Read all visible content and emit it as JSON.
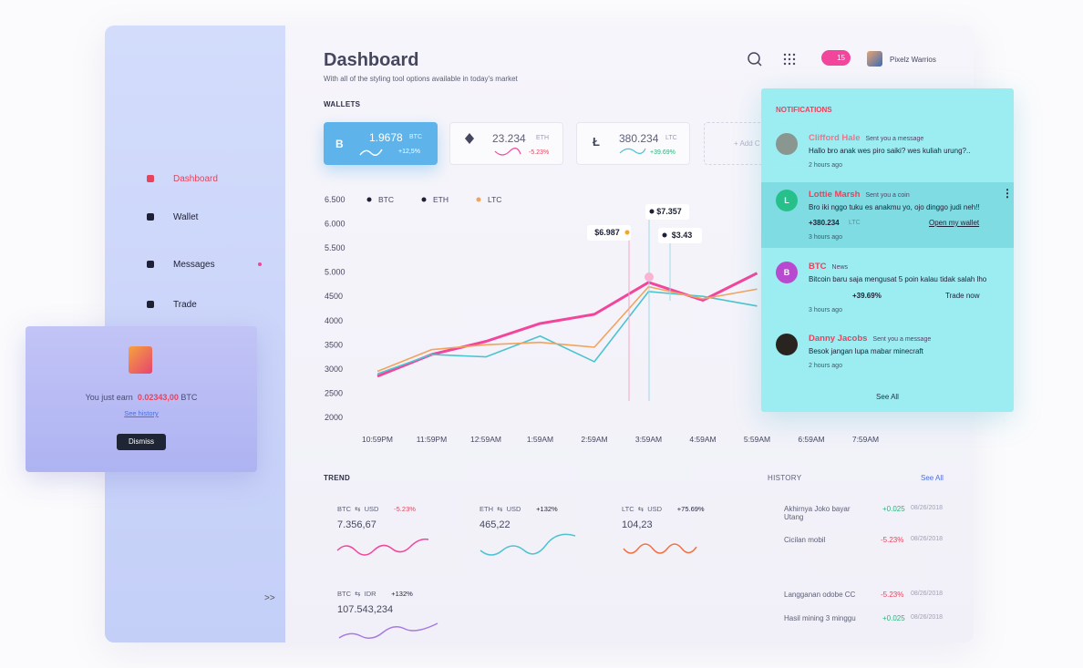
{
  "sidebar": {
    "menu": [
      "Dashboard",
      "Wallet",
      "Messages",
      "Trade"
    ],
    "collapse": ">>"
  },
  "popup": {
    "text": "You just earn",
    "amount": "0.02343,00",
    "unit": "BTC",
    "link": "See history",
    "button": "Dismiss"
  },
  "header": {
    "title": "Dashboard",
    "subtitle": "With all of the styling tool options available in today's market",
    "badge": "15",
    "user": "Pixelz Warrios"
  },
  "wallets": {
    "label": "WALLETS",
    "items": [
      {
        "amount": "1.9678",
        "coin": "BTC",
        "change": "+12,5%"
      },
      {
        "amount": "23.234",
        "coin": "ETH",
        "change": "-5.23%"
      },
      {
        "amount": "380.234",
        "coin": "LTC",
        "change": "+39.69%"
      }
    ],
    "add": "+ Add C"
  },
  "chart_data": {
    "type": "line",
    "categories": [
      "10:59PM",
      "11:59PM",
      "12:59AM",
      "1:59AM",
      "2:59AM",
      "3:59AM",
      "4:59AM",
      "5:59AM",
      "6:59AM",
      "7:59AM"
    ],
    "series": [
      {
        "name": "BTC",
        "color": "#f2459c",
        "values": [
          2850,
          3300,
          3570,
          3940,
          4130,
          4790,
          4420,
          4980,
          null,
          null
        ]
      },
      {
        "name": "ETH",
        "color": "#4cc4cf",
        "values": [
          2900,
          3300,
          3250,
          3680,
          3150,
          4600,
          4500,
          4300,
          null,
          null
        ]
      },
      {
        "name": "LTC",
        "color": "#f2a35e",
        "values": [
          2950,
          3400,
          3500,
          3550,
          3450,
          4700,
          4450,
          4650,
          null,
          null
        ]
      }
    ],
    "ylim": [
      2000,
      6500
    ],
    "yticks": [
      {
        "value": 6500,
        "label": "6.500"
      },
      {
        "value": 6000,
        "label": "6.000"
      },
      {
        "value": 5500,
        "label": "5.500"
      },
      {
        "value": 5000,
        "label": "5.000"
      },
      4500,
      4000,
      3500,
      3000,
      2500,
      2000
    ],
    "annotations": [
      {
        "text": "$6.987",
        "color": "#f5a623"
      },
      {
        "text": "$7.357",
        "color": "#1e2035"
      },
      {
        "text": "$3.43",
        "color": "#1e2035"
      }
    ]
  },
  "notifications": {
    "title": "NOTIFICATIONS",
    "items": [
      {
        "name": "Clifford Hale",
        "action": "Sent you a message",
        "message": "Hallo bro anak wes piro saiki? wes kuliah urung?..",
        "time": "2 hours ago"
      },
      {
        "initial": "L",
        "name": "Lottie Marsh",
        "action": "Sent you a coin",
        "message": "Bro iki nggo tuku es anakmu yo, ojo dinggo judi neh!!",
        "amount": "+380.234",
        "coin": "LTC",
        "link": "Open my wallet",
        "time": "3 hours ago"
      },
      {
        "initial": "B",
        "name": "BTC",
        "action": "News",
        "message": "Bitcoin baru saja mengusat 5 poin kalau tidak salah lho",
        "change": "+39.69%",
        "link": "Trade now",
        "time": "3 hours ago"
      },
      {
        "name": "Danny Jacobs",
        "action": "Sent you a message",
        "message": "Besok jangan lupa mabar minecraft",
        "time": "2 hours ago"
      }
    ],
    "see_all": "See All"
  },
  "trend": {
    "title": "TREND",
    "items": [
      {
        "base": "BTC",
        "quote": "USD",
        "change": "-5.23%",
        "price": "7.356,67"
      },
      {
        "base": "ETH",
        "quote": "USD",
        "change": "+132%",
        "price": "465,22"
      },
      {
        "base": "LTC",
        "quote": "USD",
        "change": "+75.69%",
        "price": "104,23"
      },
      {
        "base": "BTC",
        "quote": "IDR",
        "change": "+132%",
        "price": "107.543,234"
      }
    ]
  },
  "history": {
    "title": "HISTORY",
    "see_all": "See All",
    "items": [
      {
        "name": "Akhirnya Joko bayar Utang",
        "amount": "+0.025",
        "date": "08/26/2018"
      },
      {
        "name": "Cicilan mobil",
        "amount": "-5.23%",
        "date": "08/26/2018"
      },
      {
        "name": "Langganan odobe CC",
        "amount": "-5.23%",
        "date": "08/26/2018"
      },
      {
        "name": "Hasil mining 3 minggu",
        "amount": "+0.025",
        "date": "08/26/2018"
      }
    ]
  }
}
